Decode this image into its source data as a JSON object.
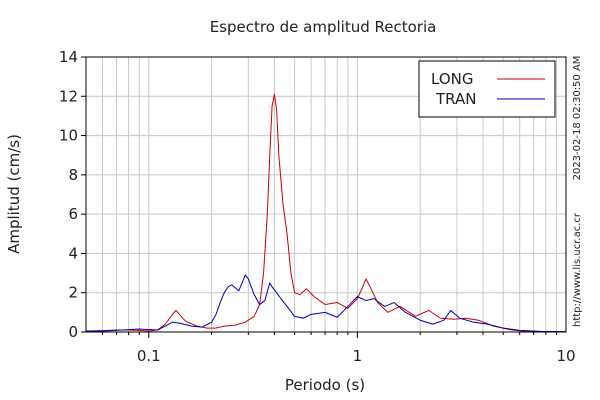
{
  "chart_data": {
    "type": "line",
    "title": "Espectro de amplitud Rectoria",
    "xlabel": "Periodo (s)",
    "ylabel": "Amplitud (cm/s)",
    "x_scale": "log",
    "xlim": [
      0.05,
      10
    ],
    "ylim": [
      0,
      14
    ],
    "grid": true,
    "legend_position": "top-right",
    "x_tick_labels": [
      {
        "value": 0.1,
        "label": "0.1"
      },
      {
        "value": 1,
        "label": "1"
      },
      {
        "value": 10,
        "label": "10"
      }
    ],
    "y_ticks": [
      0,
      2,
      4,
      6,
      8,
      10,
      12,
      14
    ],
    "side_labels": {
      "url": "http://www.lis.ucr.ac.cr",
      "timestamp": "2023-02-18 02:30:50 AM"
    },
    "series": [
      {
        "name": "LONG",
        "color": "#cc0000",
        "points": [
          [
            0.05,
            0.05
          ],
          [
            0.06,
            0.07
          ],
          [
            0.07,
            0.1
          ],
          [
            0.08,
            0.1
          ],
          [
            0.09,
            0.08
          ],
          [
            0.1,
            0.05
          ],
          [
            0.11,
            0.1
          ],
          [
            0.12,
            0.4
          ],
          [
            0.13,
            0.9
          ],
          [
            0.135,
            1.1
          ],
          [
            0.14,
            0.9
          ],
          [
            0.15,
            0.55
          ],
          [
            0.17,
            0.3
          ],
          [
            0.19,
            0.2
          ],
          [
            0.21,
            0.2
          ],
          [
            0.23,
            0.3
          ],
          [
            0.26,
            0.35
          ],
          [
            0.29,
            0.5
          ],
          [
            0.32,
            0.8
          ],
          [
            0.34,
            1.4
          ],
          [
            0.355,
            3.0
          ],
          [
            0.37,
            6.0
          ],
          [
            0.38,
            9.0
          ],
          [
            0.39,
            11.5
          ],
          [
            0.4,
            12.1
          ],
          [
            0.41,
            11.3
          ],
          [
            0.42,
            9.0
          ],
          [
            0.44,
            6.5
          ],
          [
            0.46,
            5.0
          ],
          [
            0.48,
            3.0
          ],
          [
            0.5,
            2.0
          ],
          [
            0.53,
            1.9
          ],
          [
            0.57,
            2.2
          ],
          [
            0.62,
            1.8
          ],
          [
            0.7,
            1.4
          ],
          [
            0.8,
            1.5
          ],
          [
            0.9,
            1.2
          ],
          [
            1.0,
            1.7
          ],
          [
            1.05,
            2.2
          ],
          [
            1.1,
            2.7
          ],
          [
            1.15,
            2.3
          ],
          [
            1.25,
            1.5
          ],
          [
            1.4,
            1.0
          ],
          [
            1.6,
            1.3
          ],
          [
            1.9,
            0.8
          ],
          [
            2.2,
            1.1
          ],
          [
            2.5,
            0.7
          ],
          [
            2.9,
            0.65
          ],
          [
            3.3,
            0.7
          ],
          [
            3.8,
            0.6
          ],
          [
            4.5,
            0.3
          ],
          [
            5.5,
            0.1
          ],
          [
            6.5,
            0.03
          ],
          [
            8.0,
            0.02
          ],
          [
            10,
            0.01
          ]
        ]
      },
      {
        "name": "TRAN",
        "color": "#0000bb",
        "points": [
          [
            0.05,
            0.05
          ],
          [
            0.06,
            0.05
          ],
          [
            0.07,
            0.08
          ],
          [
            0.08,
            0.12
          ],
          [
            0.09,
            0.15
          ],
          [
            0.1,
            0.12
          ],
          [
            0.11,
            0.1
          ],
          [
            0.12,
            0.3
          ],
          [
            0.13,
            0.5
          ],
          [
            0.14,
            0.45
          ],
          [
            0.16,
            0.3
          ],
          [
            0.18,
            0.25
          ],
          [
            0.2,
            0.5
          ],
          [
            0.21,
            0.9
          ],
          [
            0.22,
            1.5
          ],
          [
            0.23,
            2.0
          ],
          [
            0.24,
            2.3
          ],
          [
            0.25,
            2.4
          ],
          [
            0.27,
            2.1
          ],
          [
            0.28,
            2.5
          ],
          [
            0.29,
            2.9
          ],
          [
            0.3,
            2.7
          ],
          [
            0.32,
            1.9
          ],
          [
            0.34,
            1.4
          ],
          [
            0.36,
            1.6
          ],
          [
            0.38,
            2.5
          ],
          [
            0.39,
            2.3
          ],
          [
            0.41,
            2.0
          ],
          [
            0.43,
            1.7
          ],
          [
            0.46,
            1.3
          ],
          [
            0.5,
            0.8
          ],
          [
            0.55,
            0.7
          ],
          [
            0.6,
            0.9
          ],
          [
            0.7,
            1.0
          ],
          [
            0.8,
            0.75
          ],
          [
            0.9,
            1.3
          ],
          [
            1.0,
            1.8
          ],
          [
            1.1,
            1.6
          ],
          [
            1.2,
            1.7
          ],
          [
            1.35,
            1.3
          ],
          [
            1.5,
            1.5
          ],
          [
            1.7,
            1.0
          ],
          [
            2.0,
            0.6
          ],
          [
            2.3,
            0.4
          ],
          [
            2.6,
            0.6
          ],
          [
            2.8,
            1.1
          ],
          [
            3.1,
            0.7
          ],
          [
            3.6,
            0.5
          ],
          [
            4.2,
            0.4
          ],
          [
            5.0,
            0.2
          ],
          [
            6.0,
            0.08
          ],
          [
            7.5,
            0.03
          ],
          [
            10,
            0.01
          ]
        ]
      }
    ]
  }
}
